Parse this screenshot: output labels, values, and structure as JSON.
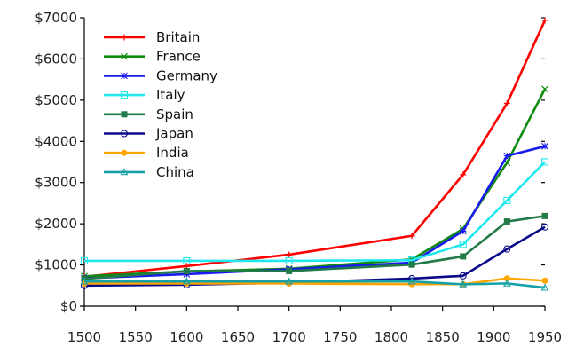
{
  "chart_data": {
    "type": "line",
    "title": "",
    "xlabel": "",
    "ylabel": "",
    "x": [
      1500,
      1600,
      1700,
      1820,
      1870,
      1913,
      1950
    ],
    "xlim": [
      1500,
      1950
    ],
    "ylim": [
      0,
      7000
    ],
    "x_ticks": [
      "1500",
      "1550",
      "1600",
      "1650",
      "1700",
      "1750",
      "1800",
      "1850",
      "1900",
      "1950"
    ],
    "y_ticks": [
      "$0",
      "$1000",
      "$2000",
      "$3000",
      "$4000",
      "$5000",
      "$6000",
      "$7000"
    ],
    "grid": false,
    "legend_position": "top-left",
    "series": [
      {
        "name": "Britain",
        "color": "#ff0000",
        "marker": "plus",
        "values": [
          714,
          974,
          1250,
          1707,
          3191,
          4921,
          6939
        ]
      },
      {
        "name": "France",
        "color": "#0e8a0e",
        "marker": "x",
        "values": [
          727,
          841,
          910,
          1135,
          1876,
          3485,
          5270
        ]
      },
      {
        "name": "Germany",
        "color": "#1a1aee",
        "marker": "star",
        "values": [
          676,
          777,
          894,
          1058,
          1821,
          3648,
          3881
        ]
      },
      {
        "name": "Italy",
        "color": "#22e8ee",
        "marker": "square-open",
        "values": [
          1100,
          1100,
          1100,
          1117,
          1499,
          2564,
          3502
        ]
      },
      {
        "name": "Spain",
        "color": "#217a48",
        "marker": "square-filled",
        "values": [
          661,
          853,
          853,
          1008,
          1207,
          2056,
          2189
        ]
      },
      {
        "name": "Japan",
        "color": "#0a0a8a",
        "marker": "circle-open",
        "values": [
          500,
          520,
          570,
          669,
          737,
          1387,
          1921
        ]
      },
      {
        "name": "India",
        "color": "#ffa500",
        "marker": "circle-filled",
        "values": [
          550,
          550,
          550,
          533,
          533,
          673,
          619
        ]
      },
      {
        "name": "China",
        "color": "#17a0a6",
        "marker": "triangle",
        "values": [
          600,
          600,
          600,
          600,
          530,
          552,
          448
        ]
      }
    ]
  }
}
